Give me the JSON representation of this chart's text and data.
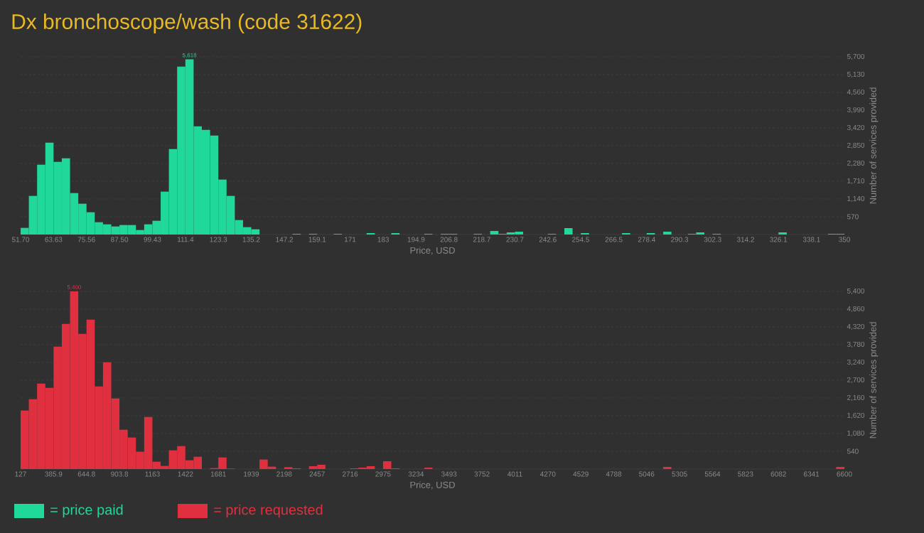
{
  "chart_data": [
    {
      "type": "histogram",
      "title": "Dx bronchoscope/wash (code 31622)",
      "xlabel": "Price, USD",
      "ylabel": "Number of services provided",
      "grid": "y",
      "legend": "bottom left",
      "bins": [
        51.7,
        54.683,
        57.666,
        60.649,
        63.632,
        66.615,
        69.598,
        72.581,
        75.564,
        78.547,
        81.53,
        84.513,
        87.496,
        90.479,
        93.462,
        96.445,
        99.428,
        102.411,
        105.394,
        108.377,
        111.36,
        114.343,
        117.326,
        120.309,
        123.292,
        126.275,
        129.258,
        132.241,
        135.224,
        138.207,
        141.19,
        144.173,
        147.156,
        150.139,
        153.122,
        156.105,
        159.088,
        162.071,
        165.054,
        168.037,
        171.02,
        174.003,
        176.986,
        179.969,
        182.952,
        185.935,
        188.918,
        191.901,
        194.884,
        197.867,
        200.85,
        203.833,
        206.816,
        209.799,
        212.782,
        215.765,
        218.748,
        221.731,
        224.714,
        227.697,
        230.68,
        233.663,
        236.646,
        239.629,
        242.612,
        245.595,
        248.578,
        251.561,
        254.544,
        257.527,
        260.51,
        263.493,
        266.476,
        269.459,
        272.442,
        275.425,
        278.408,
        281.391,
        284.374,
        287.357,
        290.34,
        293.323,
        296.306,
        299.289,
        302.272,
        305.255,
        308.238,
        311.221,
        314.204,
        317.187,
        320.17,
        323.153,
        326.136,
        329.119,
        332.102,
        335.085,
        338.068,
        341.051,
        344.034,
        347.017,
        350
      ],
      "series": [
        {
          "name": "= price paid",
          "color": "#20d89a",
          "values": [
            213,
            1239,
            2242,
            2949,
            2333,
            2447,
            1330,
            988,
            714,
            395,
            327,
            258,
            304,
            304,
            144,
            327,
            441,
            1376,
            2744,
            5388,
            5618,
            3473,
            3359,
            3177,
            1763,
            1239,
            464,
            236,
            167,
            0,
            0,
            0,
            0,
            20,
            0,
            20,
            0,
            0,
            20,
            0,
            0,
            0,
            45,
            0,
            0,
            45,
            0,
            0,
            0,
            20,
            0,
            20,
            20,
            0,
            0,
            20,
            0,
            114,
            20,
            68,
            91,
            0,
            0,
            0,
            20,
            0,
            205,
            0,
            45,
            0,
            0,
            0,
            0,
            45,
            0,
            0,
            45,
            0,
            91,
            0,
            0,
            20,
            68,
            0,
            20,
            0,
            0,
            0,
            0,
            0,
            0,
            0,
            68,
            0,
            0,
            0,
            0,
            0,
            20,
            20
          ]
        }
      ],
      "xlim": [
        51.7,
        350
      ],
      "ylim": [
        0,
        5700
      ],
      "xticks": [
        {
          "value": 51.7,
          "label": "51.70"
        },
        63.63,
        75.56,
        {
          "value": 87.5,
          "label": "87.50"
        },
        99.43,
        111.4,
        123.3,
        135.2,
        147.2,
        159.1,
        171,
        183,
        194.9,
        206.8,
        218.7,
        230.7,
        242.6,
        254.5,
        266.5,
        278.4,
        290.3,
        302.3,
        314.2,
        326.1,
        338.1,
        350
      ],
      "yticks": [
        570,
        {
          "value": 1140,
          "label": "1,140"
        },
        {
          "value": 1710,
          "label": "1,710"
        },
        {
          "value": 2280,
          "label": "2,280"
        },
        {
          "value": 2850,
          "label": "2,850"
        },
        {
          "value": 3420,
          "label": "3,420"
        },
        {
          "value": 3990,
          "label": "3,990"
        },
        {
          "value": 4560,
          "label": "4,560"
        },
        {
          "value": 5130,
          "label": "5,130"
        },
        {
          "value": 5700,
          "label": "5,700"
        }
      ],
      "annotations": [
        {
          "text": "5,618",
          "x": 112.85,
          "y": 5618
        }
      ]
    },
    {
      "type": "histogram",
      "xlabel": "Price, USD",
      "ylabel": "Number of services provided",
      "grid": "y",
      "legend": "bottom left",
      "bins": [
        127,
        191.73,
        256.46,
        321.19,
        385.92,
        450.65,
        515.38,
        580.11,
        644.84,
        709.57,
        774.3,
        839.03,
        903.76,
        968.49,
        1033.22,
        1097.95,
        1162.68,
        1227.41,
        1292.14,
        1356.87,
        1421.6,
        1486.33,
        1551.06,
        1615.79,
        1680.52,
        1745.25,
        1809.98,
        1874.71,
        1939.44,
        2004.17,
        2068.9,
        2133.63,
        2198.36,
        2263.09,
        2327.82,
        2392.55,
        2457.28,
        2522.01,
        2586.74,
        2651.47,
        2716.2,
        2780.93,
        2845.66,
        2910.39,
        2975.12,
        3039.85,
        3104.58,
        3169.31,
        3234.04,
        3298.77,
        3363.5,
        3428.23,
        3492.96,
        3557.69,
        3622.42,
        3687.15,
        3751.88,
        3816.61,
        3881.34,
        3946.07,
        4010.8,
        4075.53,
        4140.26,
        4204.99,
        4269.72,
        4334.45,
        4399.18,
        4463.91,
        4528.64,
        4593.37,
        4658.1,
        4722.83,
        4787.56,
        4852.29,
        4917.02,
        4981.75,
        5046.48,
        5111.21,
        5175.94,
        5240.67,
        5305.4,
        5370.13,
        5434.86,
        5499.59,
        5564.32,
        5629.05,
        5693.78,
        5758.51,
        5823.24,
        5887.97,
        5952.7,
        6017.43,
        6082.16,
        6146.89,
        6211.62,
        6276.35,
        6341.08,
        6405.81,
        6470.54,
        6535.27,
        6600
      ],
      "series": [
        {
          "name": "= price requested",
          "color": "#e03040",
          "values": [
            1778,
            2124,
            2599,
            2470,
            3722,
            4414,
            5400,
            4111,
            4543,
            2513,
            3247,
            2146,
            1195,
            958,
            526,
            1584,
            223,
            94,
            569,
            698,
            266,
            374,
            0,
            29,
            353,
            14,
            0,
            0,
            0,
            288,
            72,
            0,
            58,
            22,
            0,
            86,
            130,
            0,
            0,
            0,
            22,
            43,
            86,
            0,
            238,
            22,
            0,
            0,
            0,
            43,
            0,
            0,
            0,
            0,
            0,
            0,
            0,
            0,
            0,
            0,
            0,
            0,
            0,
            0,
            0,
            0,
            0,
            0,
            0,
            0,
            0,
            0,
            0,
            0,
            0,
            0,
            0,
            0,
            65,
            0,
            0,
            0,
            0,
            0,
            0,
            0,
            0,
            0,
            0,
            0,
            0,
            0,
            0,
            0,
            0,
            0,
            0,
            0,
            0,
            65
          ]
        }
      ],
      "xlim": [
        127,
        6600
      ],
      "ylim": [
        0,
        5400
      ],
      "xticks": [
        127,
        385.9,
        644.8,
        903.8,
        1163,
        1422,
        1681,
        1939,
        2198,
        2457,
        2716,
        2975,
        3234,
        3493,
        3752,
        4011,
        4270,
        4529,
        4788,
        5046,
        5305,
        5564,
        5823,
        6082,
        6341,
        6600
      ],
      "yticks": [
        540,
        {
          "value": 1080,
          "label": "1,080"
        },
        {
          "value": 1620,
          "label": "1,620"
        },
        {
          "value": 2160,
          "label": "2,160"
        },
        {
          "value": 2700,
          "label": "2,700"
        },
        {
          "value": 3240,
          "label": "3,240"
        },
        {
          "value": 3780,
          "label": "3,780"
        },
        {
          "value": 4320,
          "label": "4,320"
        },
        {
          "value": 4860,
          "label": "4,860"
        },
        {
          "value": 5400,
          "label": "5,400"
        }
      ],
      "annotations": [
        {
          "text": "5,400",
          "x": 547.7,
          "y": 5400
        }
      ]
    }
  ]
}
